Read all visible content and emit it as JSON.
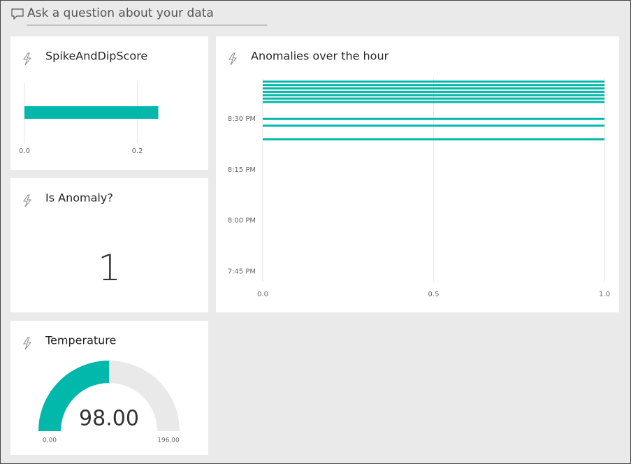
{
  "question_box": {
    "placeholder": "Ask a question about your data"
  },
  "chart_data": [
    {
      "type": "bar",
      "title": "SpikeAndDipScore",
      "orientation": "horizontal",
      "values": [
        0.237
      ],
      "color": "#01b8aa",
      "xlim": [
        0,
        0.25
      ],
      "xticks": [
        {
          "value": 0,
          "label": "0.0"
        },
        0.2
      ],
      "grid": true
    },
    {
      "type": "card",
      "title": "Is Anomaly?",
      "values": [
        1
      ]
    },
    {
      "type": "timebar",
      "title": "Anomalies over the hour",
      "orientation": "horizontal",
      "y": [
        "8:41 PM",
        "8:40 PM",
        "8:39 PM",
        "8:38 PM",
        "8:37 PM",
        "8:36 PM",
        "8:35 PM",
        "8:30 PM",
        "8:28 PM",
        "8:24 PM"
      ],
      "values": [
        1,
        1,
        1,
        1,
        1,
        1,
        1,
        1,
        1,
        1
      ],
      "color": "#01b8aa",
      "xlim": [
        0,
        1
      ],
      "xticks": [
        {
          "value": 0,
          "label": "0.0"
        },
        0.5,
        {
          "value": 1,
          "label": "1.0"
        }
      ],
      "ylim": [
        "7:42 PM",
        "8:42 PM"
      ],
      "yticks": [
        "7:45 PM",
        "8:00 PM",
        "8:15 PM",
        "8:30 PM"
      ],
      "grid": true
    },
    {
      "type": "gauge",
      "title": "Temperature",
      "values": [
        98
      ],
      "value_labels": [
        "98.00"
      ],
      "range": [
        0,
        196
      ],
      "range_labels": [
        "0.00",
        "196.00"
      ],
      "color": "#01b8aa",
      "track_color": "#e9e9e9"
    }
  ]
}
